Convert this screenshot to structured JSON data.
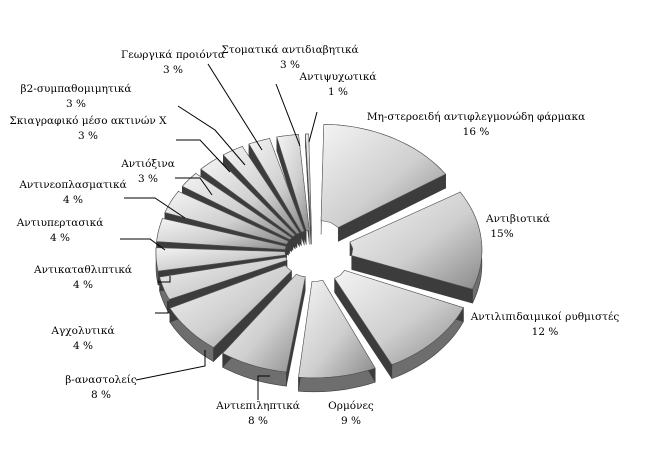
{
  "chart_data": {
    "type": "pie",
    "style": "3d-exploded-radial-wedges",
    "title": "",
    "legend": "none",
    "colors": {
      "wedge_light": "#f4f4f4",
      "wedge_mid": "#cfcfcf",
      "wedge_dark": "#8a8a8a",
      "side": "#6e6e6e",
      "side_dark": "#3c3c3c",
      "outline": "#555555",
      "leader": "#000000",
      "text": "#000000"
    },
    "slices": [
      {
        "label": "Μη-στεροειδή αντιφλεγμονώδη φάρμακα",
        "value": 16,
        "value_text": "16 %"
      },
      {
        "label": "Αντιβιοτικά",
        "value": 15,
        "value_text": "15%"
      },
      {
        "label": "Αντιλιπιδαιμικοί ρυθμιστές",
        "value": 12,
        "value_text": "12 %"
      },
      {
        "label": "Ορμόνες",
        "value": 9,
        "value_text": "9 %"
      },
      {
        "label": "Αντιεπιληπτικά",
        "value": 8,
        "value_text": "8 %"
      },
      {
        "label": "β-αναστολείς",
        "value": 8,
        "value_text": "8 %"
      },
      {
        "label": "Αγχολυτικά",
        "value": 4,
        "value_text": "4 %"
      },
      {
        "label": "Αντικαταθλιπτικά",
        "value": 4,
        "value_text": "4 %"
      },
      {
        "label": "Αντιυπερτασικά",
        "value": 4,
        "value_text": "4 %"
      },
      {
        "label": "Αντινεοπλασματικά",
        "value": 4,
        "value_text": "4 %"
      },
      {
        "label": "Αντιόξινα",
        "value": 3,
        "value_text": "3 %"
      },
      {
        "label": "Σκιαγραφικό μέσο ακτινών Χ",
        "value": 3,
        "value_text": "3 %"
      },
      {
        "label": "β2-συμπαθομιμητικά",
        "value": 3,
        "value_text": "3 %"
      },
      {
        "label": "Γεωργικά προιόντα",
        "value": 3,
        "value_text": "3 %"
      },
      {
        "label": "Στοματικά αντιδιαβητικά",
        "value": 3,
        "value_text": "3 %"
      },
      {
        "label": "Αντιψυχωτικά",
        "value": 1,
        "value_text": "1 %"
      }
    ]
  }
}
